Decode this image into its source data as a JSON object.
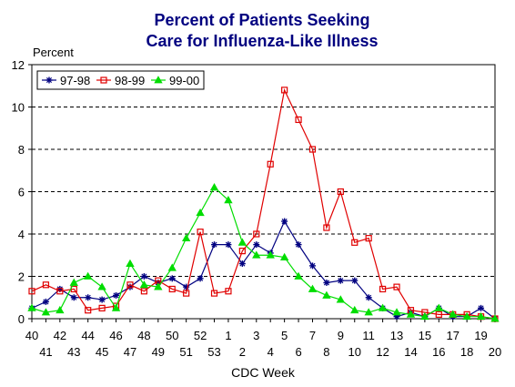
{
  "chart_data": {
    "type": "line",
    "title": [
      "Percent of Patients Seeking",
      "Care for Influenza-Like Illness"
    ],
    "ylabel": "Percent",
    "xlabel": "CDC Week",
    "ylim": [
      0,
      12
    ],
    "yticks": [
      0,
      2,
      4,
      6,
      8,
      10,
      12
    ],
    "grid": "horizontal dashed",
    "legend_position": "top-left",
    "categories": [
      "40",
      "41",
      "42",
      "43",
      "44",
      "45",
      "46",
      "47",
      "48",
      "49",
      "50",
      "51",
      "52",
      "53",
      "1",
      "2",
      "3",
      "4",
      "5",
      "6",
      "7",
      "8",
      "9",
      "10",
      "11",
      "12",
      "13",
      "14",
      "15",
      "16",
      "17",
      "18",
      "19",
      "20"
    ],
    "series": [
      {
        "name": "97-98",
        "color": "#000080",
        "marker": "asterisk",
        "values": [
          0.5,
          0.8,
          1.4,
          1.0,
          1.0,
          0.9,
          1.1,
          1.5,
          2.0,
          1.7,
          1.9,
          1.5,
          1.9,
          3.5,
          3.5,
          2.6,
          3.5,
          3.1,
          4.6,
          3.5,
          2.5,
          1.7,
          1.8,
          1.8,
          1.0,
          0.5,
          0.1,
          0.3,
          0.1,
          0.5,
          0.1,
          0.1,
          0.5,
          0.0
        ]
      },
      {
        "name": "98-99",
        "color": "#e00000",
        "marker": "square",
        "values": [
          1.3,
          1.6,
          1.3,
          1.4,
          0.4,
          0.5,
          0.6,
          1.6,
          1.3,
          1.8,
          1.4,
          1.2,
          4.1,
          1.2,
          1.3,
          3.2,
          4.0,
          7.3,
          10.8,
          9.4,
          8.0,
          4.3,
          6.0,
          3.6,
          3.8,
          1.4,
          1.5,
          0.4,
          0.3,
          0.2,
          0.2,
          0.2,
          0.1,
          0.0
        ]
      },
      {
        "name": "99-00",
        "color": "#00dd00",
        "marker": "triangle",
        "values": [
          0.5,
          0.3,
          0.4,
          1.7,
          2.0,
          1.5,
          0.5,
          2.6,
          1.6,
          1.5,
          2.4,
          3.8,
          5.0,
          6.2,
          5.6,
          3.6,
          3.0,
          3.0,
          2.9,
          2.0,
          1.4,
          1.1,
          0.9,
          0.4,
          0.3,
          0.5,
          0.3,
          0.2,
          0.1,
          0.5,
          0.2,
          0.1,
          0.1,
          0.0
        ]
      }
    ]
  }
}
